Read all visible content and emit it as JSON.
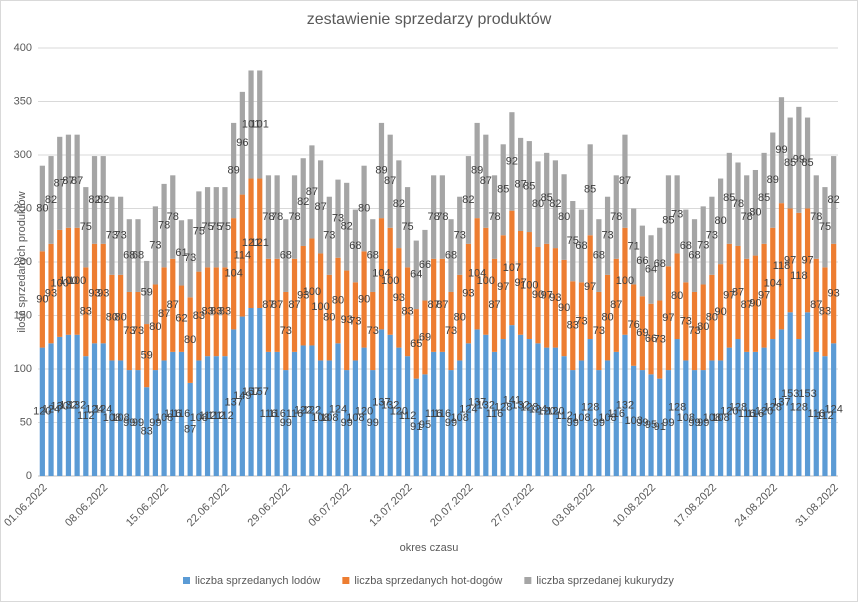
{
  "chart_data": {
    "type": "stacked_bar",
    "title": "zestawienie sprzedarzy produktów",
    "x_label": "okres czasu",
    "y_label": "ilość sprzedanych produktów",
    "categories": [
      "01.06.2022",
      null,
      null,
      null,
      null,
      null,
      null,
      "08.06.2022",
      null,
      null,
      null,
      null,
      null,
      null,
      "15.06.2022",
      null,
      null,
      null,
      null,
      null,
      null,
      "22.06.2022",
      null,
      null,
      null,
      null,
      null,
      null,
      "29.06.2022",
      null,
      null,
      null,
      null,
      null,
      null,
      "06.07.2022",
      null,
      null,
      null,
      null,
      null,
      null,
      "13.07.2022",
      null,
      null,
      null,
      null,
      null,
      null,
      "20.07.2022",
      null,
      null,
      null,
      null,
      null,
      null,
      "27.07.2022",
      null,
      null,
      null,
      null,
      null,
      null,
      "03.08.2022",
      null,
      null,
      null,
      null,
      null,
      null,
      "10.08.2022",
      null,
      null,
      null,
      null,
      null,
      null,
      "17.08.2022",
      null,
      null,
      null,
      null,
      null,
      null,
      "24.08.2022",
      null,
      null,
      null,
      null,
      null,
      null,
      "31.08.2022"
    ],
    "series": [
      {
        "name": "liczba sprzedanych lodów",
        "color": "#5b9bd5",
        "values": [
          120,
          124,
          130,
          132,
          132,
          112,
          124,
          124,
          108,
          108,
          99,
          99,
          83,
          99,
          108,
          116,
          116,
          87,
          108,
          112,
          112,
          112,
          137,
          149,
          157,
          157,
          116,
          116,
          99,
          116,
          122,
          122,
          108,
          108,
          124,
          99,
          108,
          120,
          99,
          137,
          132,
          120,
          112,
          91,
          95,
          116,
          116,
          99,
          108,
          124,
          137,
          132,
          116,
          128,
          141,
          132,
          128,
          124,
          120,
          120,
          112,
          99,
          108,
          128,
          99,
          108,
          116,
          132,
          103,
          99,
          95,
          91,
          99,
          128,
          108,
          99,
          99,
          108,
          108,
          120,
          128,
          116,
          116,
          120,
          128,
          137,
          153,
          128,
          153,
          116,
          112,
          124
        ]
      },
      {
        "name": "liczba sprzedanych hot-dogów",
        "color": "#ed7d31",
        "values": [
          90,
          93,
          100,
          100,
          100,
          83,
          93,
          93,
          80,
          80,
          73,
          73,
          59,
          80,
          87,
          87,
          62,
          80,
          83,
          83,
          83,
          83,
          104,
          114,
          121,
          121,
          87,
          87,
          73,
          87,
          93,
          100,
          100,
          80,
          80,
          93,
          73,
          90,
          73,
          104,
          100,
          93,
          83,
          65,
          69,
          87,
          87,
          73,
          80,
          93,
          104,
          100,
          87,
          97,
          107,
          97,
          100,
          90,
          97,
          93,
          90,
          83,
          73,
          97,
          73,
          80,
          87,
          100,
          76,
          69,
          66,
          73,
          97,
          80,
          73,
          73,
          80,
          80,
          90,
          97,
          87,
          87,
          90,
          97,
          104,
          118,
          97,
          118,
          97,
          87,
          83,
          93
        ]
      },
      {
        "name": "liczba sprzedanej kukurydzy",
        "color": "#a5a5a5",
        "values": [
          80,
          82,
          87,
          87,
          87,
          75,
          82,
          82,
          73,
          73,
          68,
          68,
          59,
          73,
          78,
          78,
          61,
          73,
          75,
          75,
          75,
          75,
          89,
          96,
          101,
          101,
          78,
          78,
          68,
          78,
          82,
          87,
          87,
          73,
          73,
          82,
          68,
          80,
          68,
          89,
          87,
          82,
          75,
          64,
          66,
          78,
          78,
          68,
          73,
          82,
          89,
          87,
          78,
          85,
          92,
          87,
          85,
          80,
          85,
          82,
          80,
          75,
          68,
          85,
          68,
          73,
          78,
          87,
          71,
          66,
          64,
          68,
          85,
          73,
          68,
          68,
          73,
          73,
          80,
          85,
          78,
          78,
          80,
          85,
          89,
          99,
          85,
          99,
          85,
          78,
          75,
          82
        ]
      }
    ],
    "ylim": [
      0,
      400
    ],
    "yticks": [
      0,
      50,
      100,
      150,
      200,
      250,
      300,
      350,
      400
    ],
    "grid": true
  }
}
